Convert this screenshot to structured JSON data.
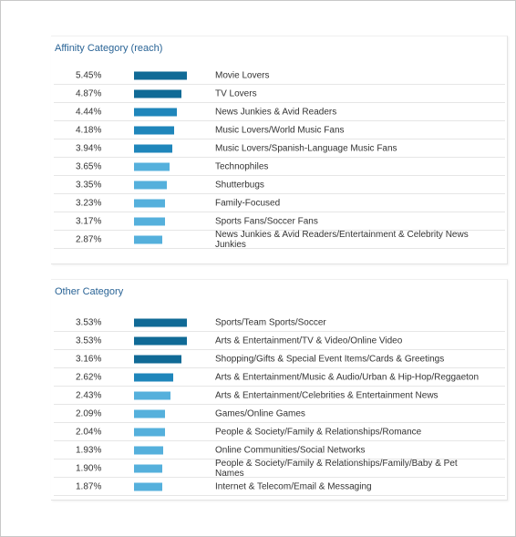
{
  "colors": {
    "bar_dark": "#106a96",
    "bar_mid": "#1f86bb",
    "bar_light": "#55b0dc",
    "title": "#2a6496"
  },
  "affinity": {
    "title": "Affinity Category (reach)",
    "rows": [
      {
        "pct": "5.45%",
        "value": 5.45,
        "label": "Movie Lovers"
      },
      {
        "pct": "4.87%",
        "value": 4.87,
        "label": "TV Lovers"
      },
      {
        "pct": "4.44%",
        "value": 4.44,
        "label": "News Junkies & Avid Readers"
      },
      {
        "pct": "4.18%",
        "value": 4.18,
        "label": "Music Lovers/World Music Fans"
      },
      {
        "pct": "3.94%",
        "value": 3.94,
        "label": "Music Lovers/Spanish-Language Music Fans"
      },
      {
        "pct": "3.65%",
        "value": 3.65,
        "label": "Technophiles"
      },
      {
        "pct": "3.35%",
        "value": 3.35,
        "label": "Shutterbugs"
      },
      {
        "pct": "3.23%",
        "value": 3.23,
        "label": "Family-Focused"
      },
      {
        "pct": "3.17%",
        "value": 3.17,
        "label": "Sports Fans/Soccer Fans"
      },
      {
        "pct": "2.87%",
        "value": 2.87,
        "label": "News Junkies & Avid Readers/Entertainment & Celebrity News Junkies"
      }
    ]
  },
  "other": {
    "title": "Other Category",
    "rows": [
      {
        "pct": "3.53%",
        "value": 3.53,
        "label": "Sports/Team Sports/Soccer"
      },
      {
        "pct": "3.53%",
        "value": 3.53,
        "label": "Arts & Entertainment/TV & Video/Online Video"
      },
      {
        "pct": "3.16%",
        "value": 3.16,
        "label": "Shopping/Gifts & Special Event Items/Cards & Greetings"
      },
      {
        "pct": "2.62%",
        "value": 2.62,
        "label": "Arts & Entertainment/Music & Audio/Urban & Hip-Hop/Reggaeton"
      },
      {
        "pct": "2.43%",
        "value": 2.43,
        "label": "Arts & Entertainment/Celebrities & Entertainment News"
      },
      {
        "pct": "2.09%",
        "value": 2.09,
        "label": "Games/Online Games"
      },
      {
        "pct": "2.04%",
        "value": 2.04,
        "label": "People & Society/Family & Relationships/Romance"
      },
      {
        "pct": "1.93%",
        "value": 1.93,
        "label": "Online Communities/Social Networks"
      },
      {
        "pct": "1.90%",
        "value": 1.9,
        "label": "People & Society/Family & Relationships/Family/Baby & Pet Names"
      },
      {
        "pct": "1.87%",
        "value": 1.87,
        "label": "Internet & Telecom/Email & Messaging"
      }
    ]
  }
}
